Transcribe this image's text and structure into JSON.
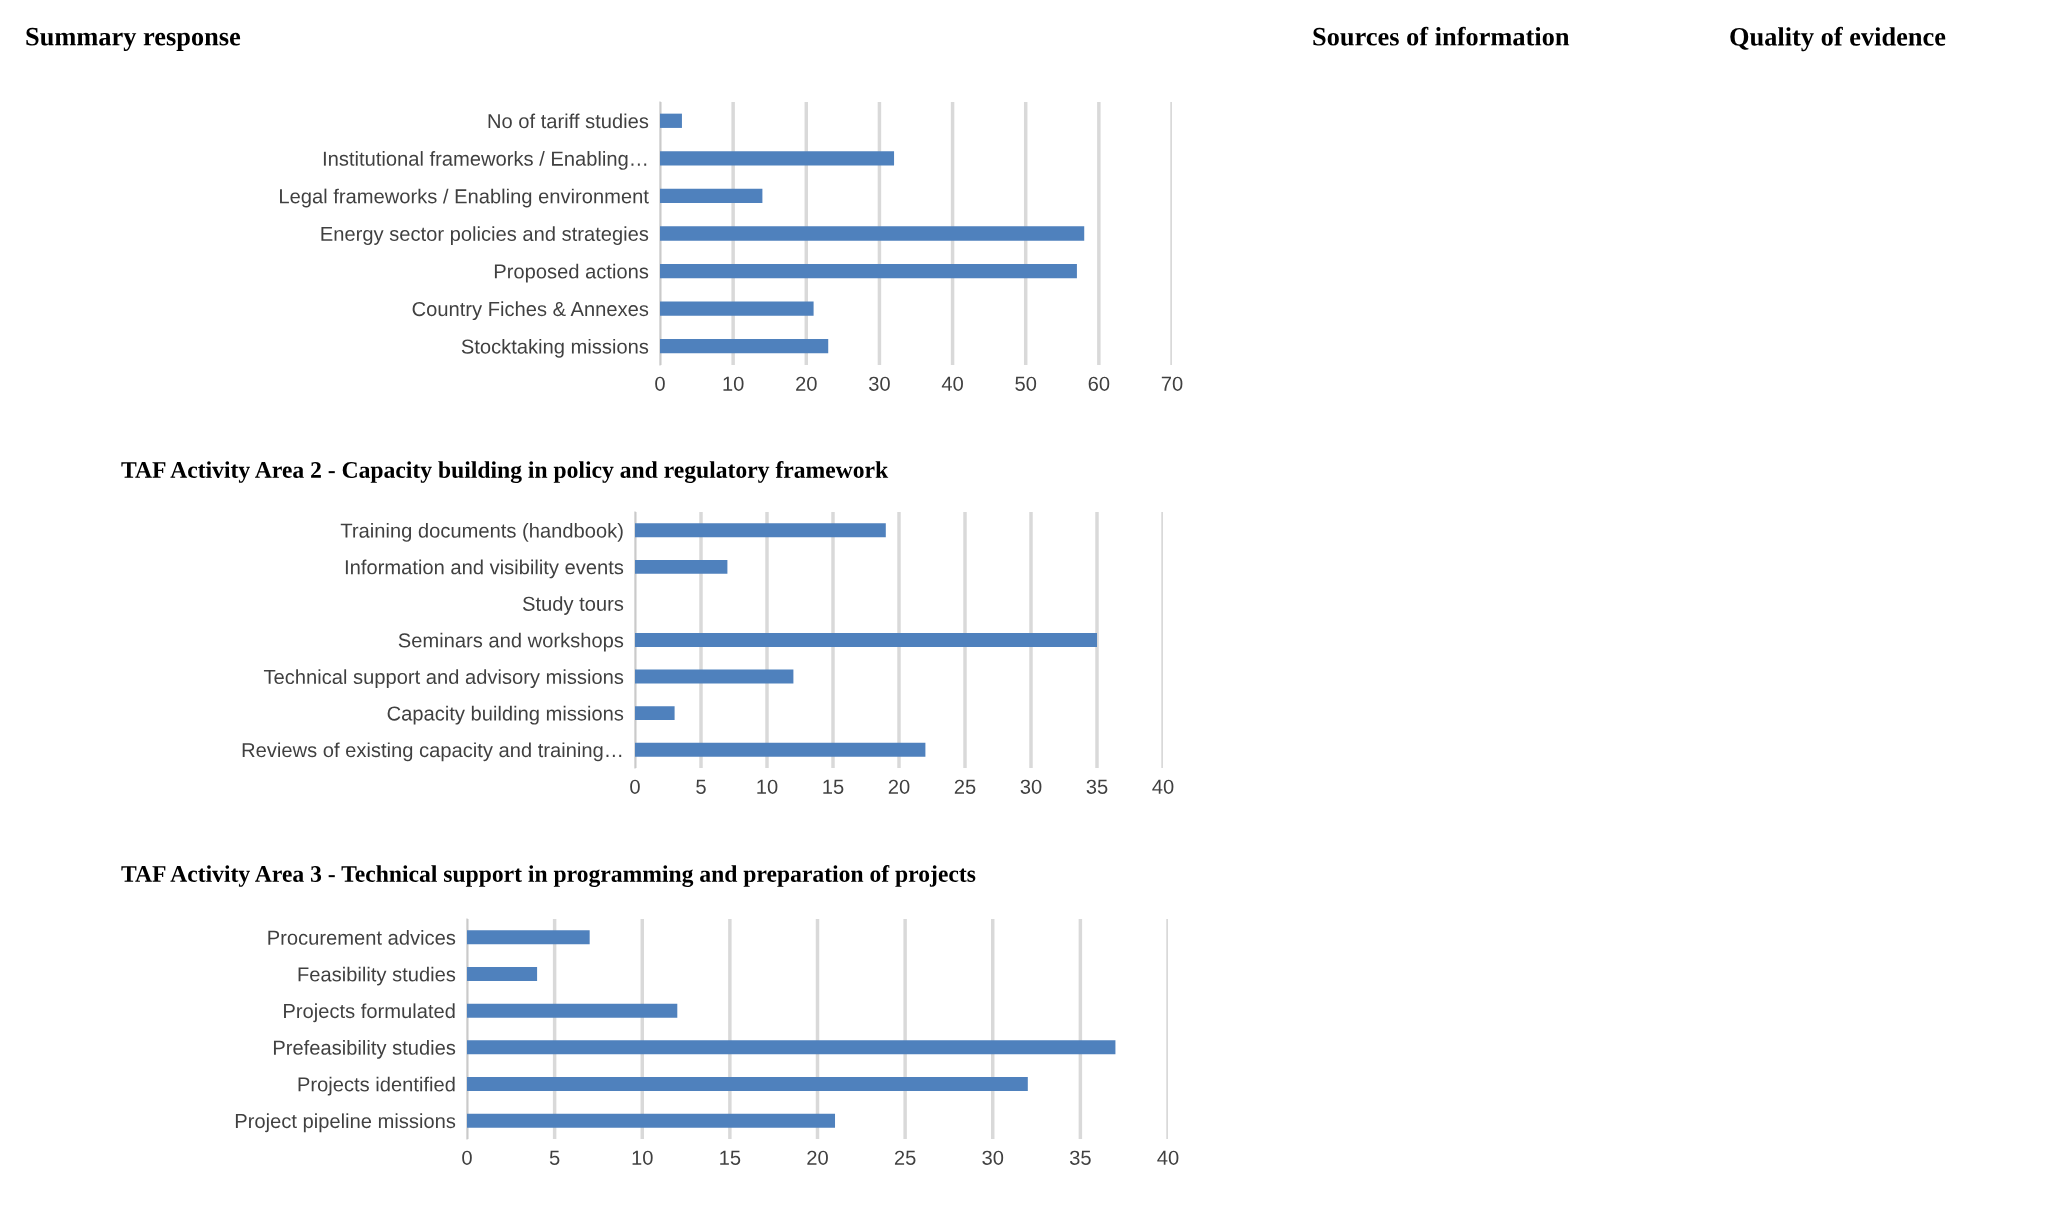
{
  "chart_data": [
    {
      "type": "bar",
      "orientation": "horizontal",
      "annotations": [
        "Summary response",
        "Sources of information",
        "Quality of evidence"
      ],
      "categories": [
        "No of tariff studies",
        "Institutional frameworks / Enabling…",
        "Legal frameworks / Enabling environment",
        "Energy sector policies and strategies",
        "Proposed actions",
        "Country Fiches & Annexes",
        "Stocktaking missions"
      ],
      "values": [
        3,
        32,
        14,
        58,
        57,
        21,
        23
      ],
      "color": "#4f81bd",
      "xlim": [
        0,
        70
      ],
      "xticks": [
        0,
        10,
        20,
        30,
        40,
        50,
        60,
        70
      ],
      "grid": "x"
    },
    {
      "type": "bar",
      "orientation": "horizontal",
      "title": "TAF Activity Area 2 - Capacity building in policy and regulatory framework",
      "categories": [
        "Training documents (handbook)",
        "Information and visibility events",
        "Study tours",
        "Seminars and workshops",
        "Technical support and advisory missions",
        "Capacity building missions",
        "Reviews of existing capacity and training…"
      ],
      "values": [
        19,
        7,
        0,
        35,
        12,
        3,
        22
      ],
      "color": "#4f81bd",
      "xlim": [
        0,
        40
      ],
      "xticks": [
        0,
        5,
        10,
        15,
        20,
        25,
        30,
        35,
        40
      ],
      "grid": "x"
    },
    {
      "type": "bar",
      "orientation": "horizontal",
      "title": "TAF Activity Area 3 - Technical support in programming and preparation of projects",
      "categories": [
        "Procurement advices",
        "Feasibility studies",
        "Projects formulated",
        "Prefeasibility studies",
        "Projects identified",
        "Project pipeline missions"
      ],
      "values": [
        7,
        4,
        12,
        37,
        32,
        21
      ],
      "color": "#4f81bd",
      "xlim": [
        0,
        40
      ],
      "xticks": [
        0,
        5,
        10,
        15,
        20,
        25,
        30,
        35,
        40
      ],
      "grid": "x"
    }
  ]
}
